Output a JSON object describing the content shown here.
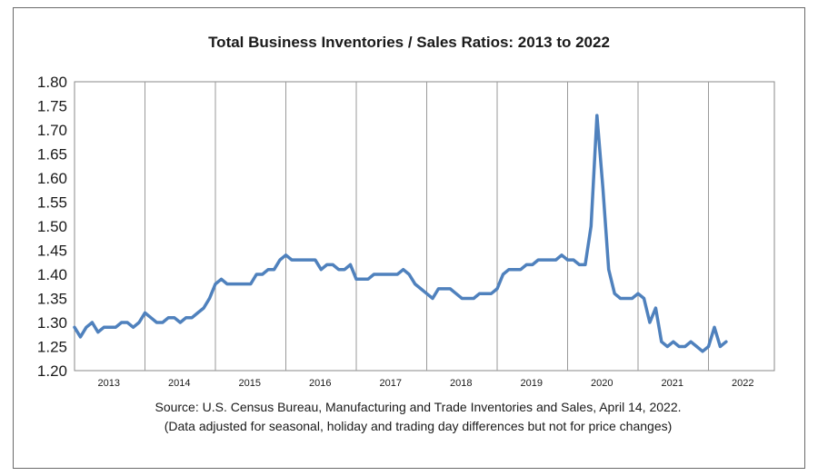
{
  "chart_data": {
    "type": "line",
    "title": "Total Business Inventories / Sales Ratios: 2013 to 2022",
    "ylim": [
      1.2,
      1.8
    ],
    "y_ticks": [
      "1.80",
      "1.75",
      "1.70",
      "1.65",
      "1.60",
      "1.55",
      "1.50",
      "1.45",
      "1.40",
      "1.35",
      "1.30",
      "1.25",
      "1.20"
    ],
    "x_tick_labels": [
      "2013",
      "2014",
      "2015",
      "2016",
      "2017",
      "2018",
      "2019",
      "2020",
      "2021",
      "2022"
    ],
    "x_start_year": 2013,
    "months_per_year": 12,
    "grid": "vertical year dividers",
    "line_color": "#4f81bd",
    "series": [
      {
        "values": [
          1.29,
          1.27,
          1.29,
          1.3,
          1.28,
          1.29,
          1.29,
          1.29,
          1.3,
          1.3,
          1.29,
          1.3,
          1.32,
          1.31,
          1.3,
          1.3,
          1.31,
          1.31,
          1.3,
          1.31,
          1.31,
          1.32,
          1.33,
          1.35,
          1.38,
          1.39,
          1.38,
          1.38,
          1.38,
          1.38,
          1.38,
          1.4,
          1.4,
          1.41,
          1.41,
          1.43,
          1.44,
          1.43,
          1.43,
          1.43,
          1.43,
          1.43,
          1.41,
          1.42,
          1.42,
          1.41,
          1.41,
          1.42,
          1.39,
          1.39,
          1.39,
          1.4,
          1.4,
          1.4,
          1.4,
          1.4,
          1.41,
          1.4,
          1.38,
          1.37,
          1.36,
          1.35,
          1.37,
          1.37,
          1.37,
          1.36,
          1.35,
          1.35,
          1.35,
          1.36,
          1.36,
          1.36,
          1.37,
          1.4,
          1.41,
          1.41,
          1.41,
          1.42,
          1.42,
          1.43,
          1.43,
          1.43,
          1.43,
          1.44,
          1.43,
          1.43,
          1.42,
          1.42,
          1.5,
          1.73,
          1.58,
          1.41,
          1.36,
          1.35,
          1.35,
          1.35,
          1.36,
          1.35,
          1.3,
          1.33,
          1.26,
          1.25,
          1.26,
          1.25,
          1.25,
          1.26,
          1.25,
          1.24,
          1.25,
          1.29,
          1.25,
          1.26
        ]
      }
    ]
  },
  "source_line1": "Source: U.S. Census Bureau, Manufacturing and Trade Inventories and Sales, April 14, 2022.",
  "source_line2": "(Data adjusted for seasonal, holiday and trading day differences but not for price changes)"
}
